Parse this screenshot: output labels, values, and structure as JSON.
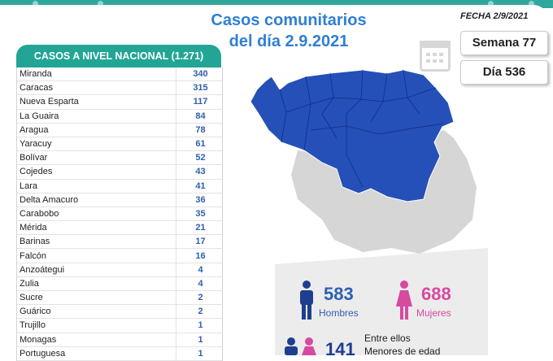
{
  "header": {
    "title_line1": "Casos comunitarios",
    "title_line2": "del día 2.9.2021",
    "fecha": "FECHA 2/9/2021"
  },
  "badges": {
    "semana": "Semana 77",
    "dia": "Día 536"
  },
  "icons": {
    "calendar": "calendar-icon",
    "male": "male-person-icon",
    "female": "female-person-icon"
  },
  "table": {
    "header": "CASOS A NIVEL NACIONAL (1.271)",
    "rows": [
      {
        "state": "Miranda",
        "cases": "340"
      },
      {
        "state": "Caracas",
        "cases": "315"
      },
      {
        "state": "Nueva Esparta",
        "cases": "117"
      },
      {
        "state": "La Guaira",
        "cases": "84"
      },
      {
        "state": "Aragua",
        "cases": "78"
      },
      {
        "state": "Yaracuy",
        "cases": "61"
      },
      {
        "state": "Bolívar",
        "cases": "52"
      },
      {
        "state": "Cojedes",
        "cases": "43"
      },
      {
        "state": "Lara",
        "cases": "41"
      },
      {
        "state": "Delta Amacuro",
        "cases": "36"
      },
      {
        "state": "Carabobo",
        "cases": "35"
      },
      {
        "state": "Mérida",
        "cases": "21"
      },
      {
        "state": "Barinas",
        "cases": "17"
      },
      {
        "state": "Falcón",
        "cases": "16"
      },
      {
        "state": "Anzoátegui",
        "cases": "4"
      },
      {
        "state": "Zulia",
        "cases": "4"
      },
      {
        "state": "Sucre",
        "cases": "2"
      },
      {
        "state": "Guárico",
        "cases": "2"
      },
      {
        "state": "Trujillo",
        "cases": "1"
      },
      {
        "state": "Monagas",
        "cases": "1"
      },
      {
        "state": "Portuguesa",
        "cases": "1"
      }
    ]
  },
  "stats": {
    "men_count": "583",
    "men_label": "Hombres",
    "women_count": "688",
    "women_label": "Mujeres",
    "minors_count": "141",
    "minors_label1": "Entre ellos",
    "minors_label2": "Menores de edad"
  },
  "colors": {
    "accent_teal": "#22a594",
    "title_blue": "#2f7fd3",
    "map_blue": "#2550b8",
    "men_blue": "#2e5fb0",
    "women_pink": "#d64aa0"
  }
}
